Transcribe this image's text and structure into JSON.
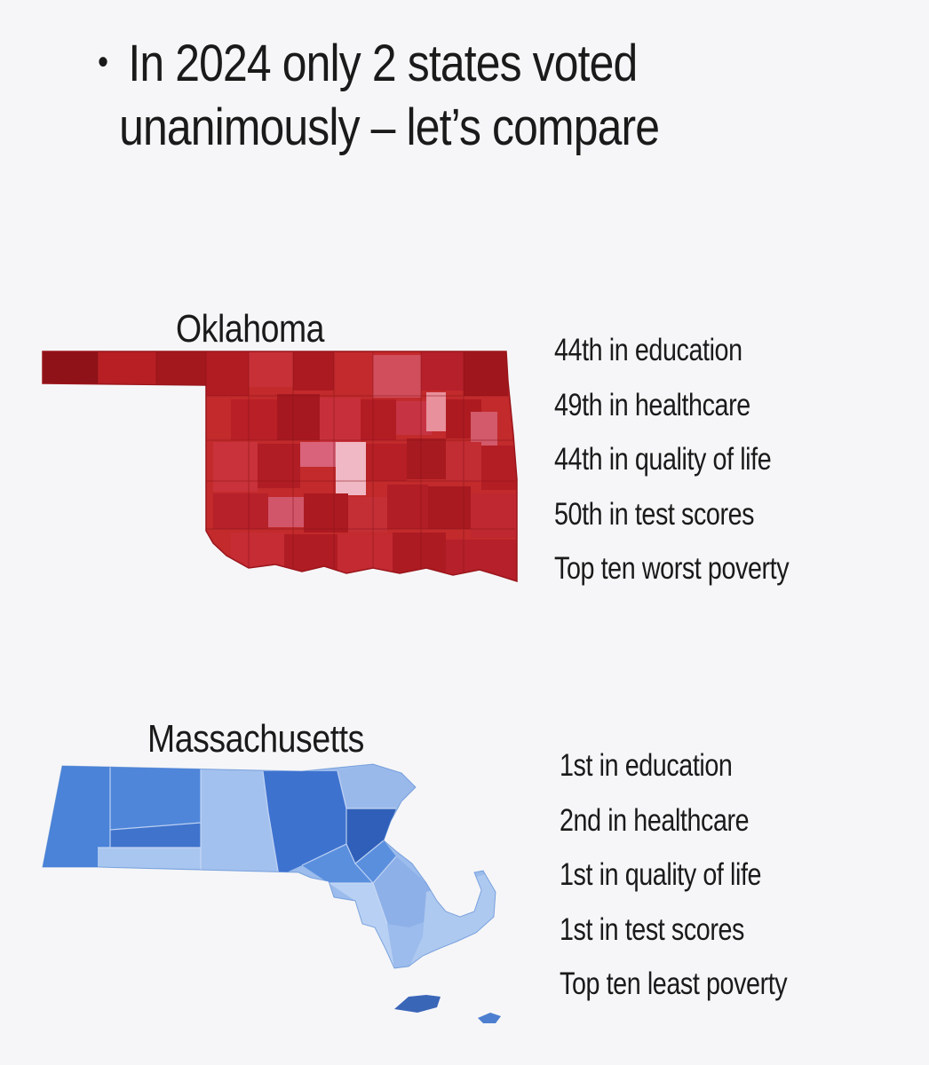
{
  "headline": {
    "bullet": "•",
    "line1": "In 2024 only 2 states voted",
    "line2": "unanimously – let’s compare"
  },
  "states": [
    {
      "name": "Oklahoma",
      "map_color": "#c3262b",
      "stats": [
        "44th in education",
        "49th in healthcare",
        "44th in quality of life",
        "50th in test scores",
        "Top ten worst poverty"
      ]
    },
    {
      "name": "Massachusetts",
      "map_color": "#4f86d6",
      "stats": [
        "1st in education",
        "2nd in healthcare",
        "1st in quality of life",
        "1st in test scores",
        "Top ten least poverty"
      ]
    }
  ]
}
